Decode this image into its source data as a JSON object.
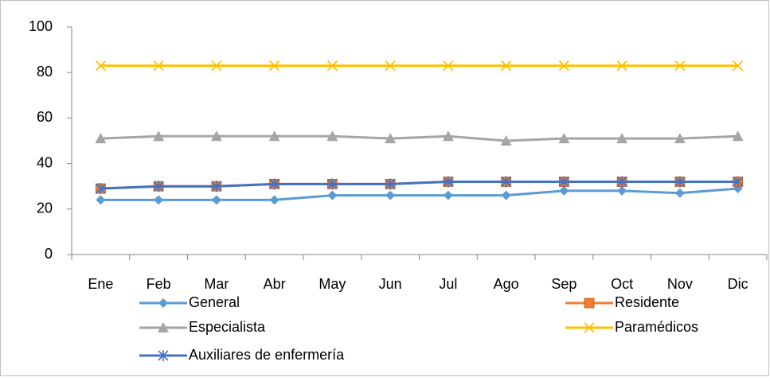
{
  "chart_data": {
    "type": "line",
    "categories": [
      "Ene",
      "Feb",
      "Mar",
      "Abr",
      "May",
      "Jun",
      "Jul",
      "Ago",
      "Sep",
      "Oct",
      "Nov",
      "Dic"
    ],
    "series": [
      {
        "name": "General",
        "color": "#5b9bd5",
        "marker": "diamond",
        "values": [
          24,
          24,
          24,
          24,
          26,
          26,
          26,
          26,
          28,
          28,
          27,
          29
        ]
      },
      {
        "name": "Residente",
        "color": "#ed7d31",
        "marker": "square",
        "values": [
          29,
          30,
          30,
          31,
          31,
          31,
          32,
          32,
          32,
          32,
          32,
          32
        ]
      },
      {
        "name": "Especialista",
        "color": "#a5a5a5",
        "marker": "triangle",
        "values": [
          51,
          52,
          52,
          52,
          52,
          51,
          52,
          50,
          51,
          51,
          51,
          52
        ]
      },
      {
        "name": "Paramédicos",
        "color": "#ffc000",
        "marker": "x",
        "values": [
          83,
          83,
          83,
          83,
          83,
          83,
          83,
          83,
          83,
          83,
          83,
          83
        ]
      },
      {
        "name": "Auxiliares de enfermería",
        "color": "#4472c4",
        "marker": "star",
        "values": [
          29,
          30,
          30,
          31,
          31,
          31,
          32,
          32,
          32,
          32,
          32,
          32
        ]
      }
    ],
    "ylim": [
      0,
      100
    ],
    "yticks": [
      0,
      20,
      40,
      60,
      80,
      100
    ],
    "grid": false,
    "legend": "bottom"
  }
}
